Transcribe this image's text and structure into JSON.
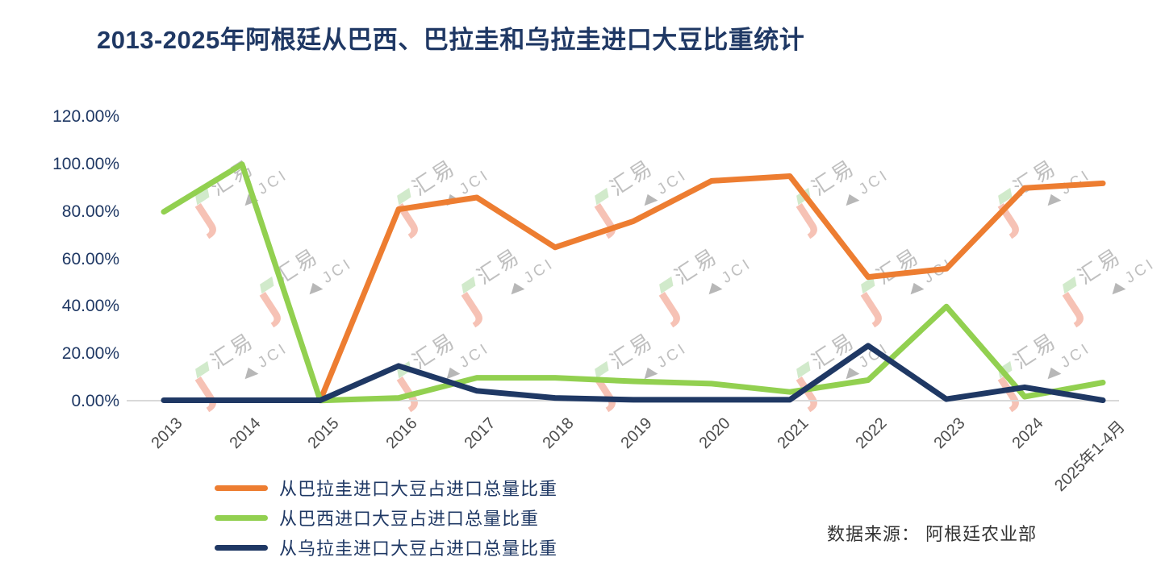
{
  "page": {
    "title": "2013-2025年阿根廷从巴西、巴拉圭和乌拉圭进口大豆比重统计",
    "source_label": "数据来源：  阿根廷农业部"
  },
  "watermark": {
    "cn": "汇易",
    "en": "JCI"
  },
  "colors": {
    "title": "#1F3864",
    "y_axis_label": "#1F3864",
    "x_axis_label": "#4d4d4d",
    "axis_line": "#D9D9D9",
    "series_paraguay": "#ED7D31",
    "series_brazil": "#92D050",
    "series_uruguay": "#1F3864"
  },
  "chart_data": {
    "type": "line",
    "title": "2013-2025年阿根廷从巴西、巴拉圭和乌拉圭进口大豆比重统计",
    "categories": [
      "2013",
      "2014",
      "2015",
      "2016",
      "2017",
      "2018",
      "2019",
      "2020",
      "2021",
      "2022",
      "2023",
      "2024",
      "2025年1-4月"
    ],
    "series": [
      {
        "name": "从巴拉圭进口大豆占进口总量比重",
        "color": "#ED7D31",
        "values": [
          null,
          null,
          0.5,
          81,
          86,
          65,
          76,
          93,
          95,
          52.5,
          56,
          90,
          92
        ]
      },
      {
        "name": "从巴西进口大豆占进口总量比重",
        "color": "#92D050",
        "values": [
          80,
          100,
          0.4,
          1.5,
          10,
          10,
          8.5,
          7.5,
          4,
          9,
          40,
          2,
          8
        ]
      },
      {
        "name": "从乌拉圭进口大豆占进口总量比重",
        "color": "#1F3864",
        "values": [
          0.5,
          0.5,
          0.5,
          15,
          4.5,
          1.5,
          0.7,
          0.7,
          0.7,
          23.5,
          1,
          6,
          0.5
        ]
      }
    ],
    "ylabel": "",
    "xlabel": "",
    "ylim": [
      0,
      120
    ],
    "y_tick_labels": [
      "0.00%",
      "20.00%",
      "40.00%",
      "60.00%",
      "80.00%",
      "100.00%",
      "120.00%"
    ],
    "grid": false,
    "legend_position": "bottom-left",
    "source": "数据来源：  阿根廷农业部"
  }
}
